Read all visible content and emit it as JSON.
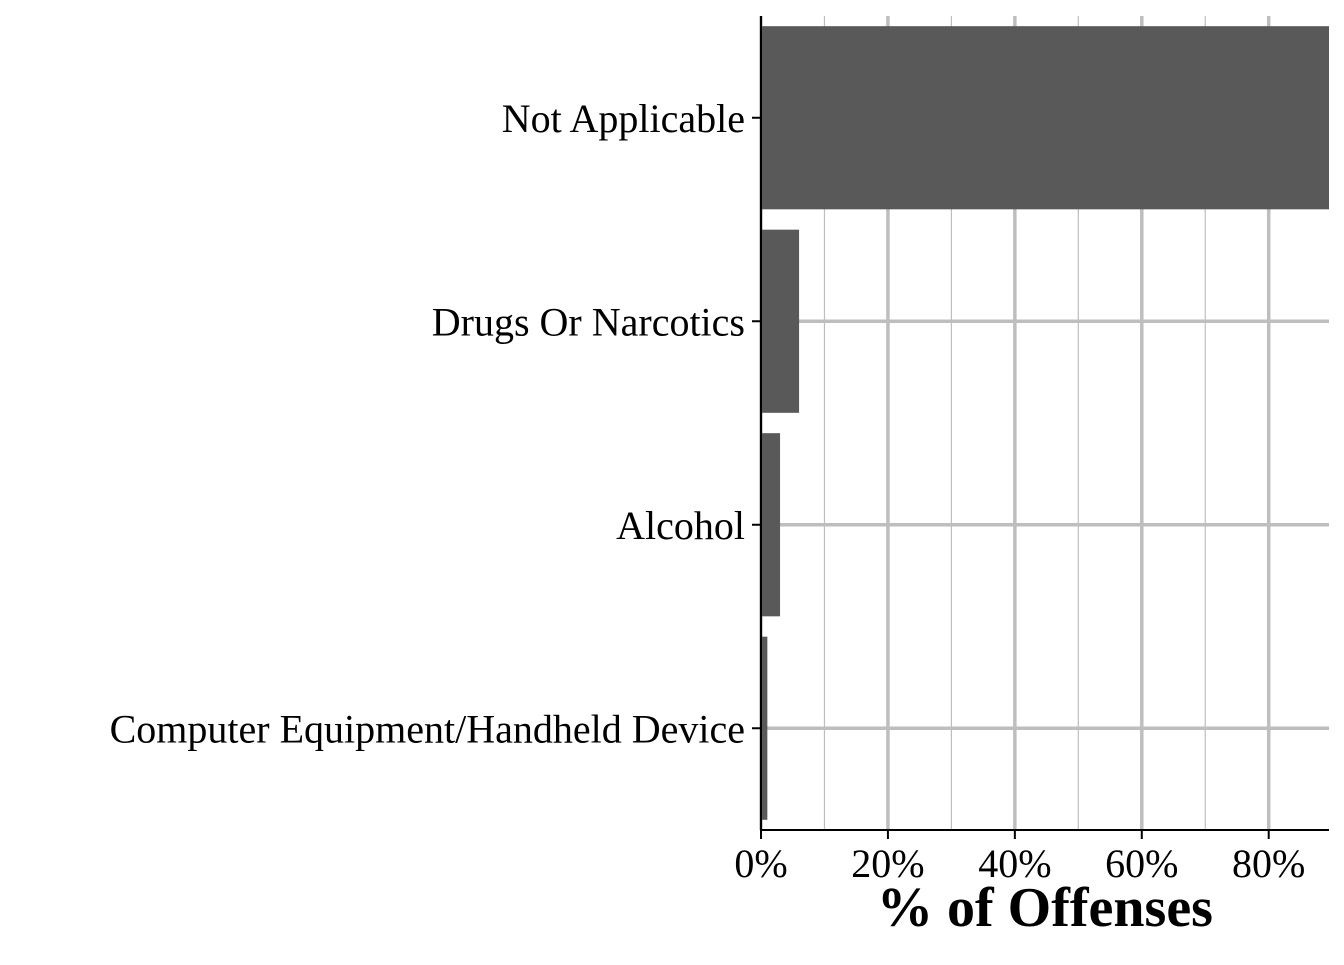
{
  "chart_data": {
    "type": "bar",
    "orientation": "horizontal",
    "categories": [
      "Not Applicable",
      "Drugs Or Narcotics",
      "Alcohol",
      "Computer Equipment/Handheld Device"
    ],
    "values": [
      89.5,
      6.0,
      3.0,
      1.0
    ],
    "title": "",
    "xlabel": "% of Offenses",
    "ylabel": "",
    "xlim": [
      0,
      89.5
    ],
    "x_ticks": [
      0,
      20,
      40,
      60,
      80
    ],
    "x_tick_labels": [
      "0%",
      "20%",
      "40%",
      "60%",
      "80%"
    ],
    "grid": true,
    "legend": "none",
    "colors": {
      "bar": "#595959",
      "grid": "#bebebe",
      "axis": "#000000"
    }
  }
}
